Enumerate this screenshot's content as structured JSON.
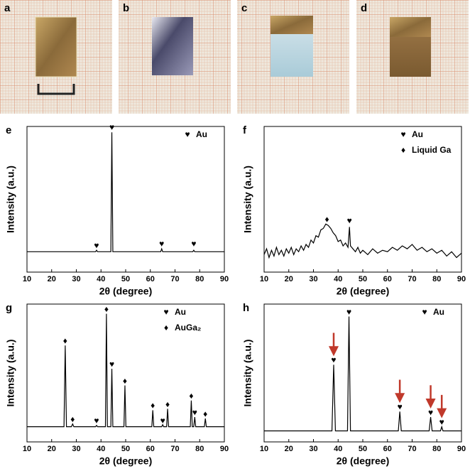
{
  "photos": [
    {
      "label": "a"
    },
    {
      "label": "b"
    },
    {
      "label": "c"
    },
    {
      "label": "d"
    }
  ],
  "chart_data": [
    {
      "type": "line",
      "label": "e",
      "xlabel": "2θ (degree)",
      "ylabel": "Intensity (a.u.)",
      "xlim": [
        10,
        90
      ],
      "ylim": [
        0,
        100
      ],
      "xticks": [
        10,
        20,
        30,
        40,
        50,
        60,
        70,
        80,
        90
      ],
      "legend_position": "upper right",
      "color": "#000000",
      "x": [
        10,
        37.8,
        38.2,
        38.6,
        44,
        44.4,
        44.8,
        64.2,
        64.6,
        65,
        77.2,
        77.6,
        78,
        90
      ],
      "values": [
        14,
        14,
        15,
        14,
        14,
        96,
        14,
        14,
        16,
        14,
        14,
        15,
        14,
        14
      ],
      "legend": [
        {
          "symbol": "♥",
          "label": "Au"
        }
      ],
      "markers": [
        {
          "symbol": "♥",
          "x": 38.2,
          "y": 18
        },
        {
          "symbol": "♥",
          "x": 44.4,
          "y": 99
        },
        {
          "symbol": "♥",
          "x": 64.6,
          "y": 19
        },
        {
          "symbol": "♥",
          "x": 77.6,
          "y": 19
        }
      ],
      "arrows": []
    },
    {
      "type": "line",
      "label": "f",
      "xlabel": "2θ (degree)",
      "ylabel": "Intensity (a.u.)",
      "xlim": [
        10,
        90
      ],
      "ylim": [
        0,
        100
      ],
      "xticks": [
        10,
        20,
        30,
        40,
        50,
        60,
        70,
        80,
        90
      ],
      "legend_position": "upper right",
      "color": "#000000",
      "x": [
        10,
        11,
        12,
        13,
        14,
        15,
        16,
        17,
        18,
        19,
        20,
        21,
        22,
        23,
        24,
        25,
        26,
        27,
        28,
        29,
        30,
        31,
        32,
        33,
        34,
        35,
        36,
        37,
        38,
        39,
        40,
        41,
        42,
        43,
        44,
        44.6,
        45,
        46,
        47,
        48,
        49,
        50,
        52,
        54,
        56,
        58,
        60,
        62,
        64,
        66,
        68,
        70,
        72,
        74,
        76,
        78,
        80,
        82,
        84,
        86,
        88,
        90
      ],
      "values": [
        12,
        16,
        10,
        15,
        11,
        17,
        12,
        15,
        11,
        16,
        13,
        17,
        12,
        16,
        14,
        18,
        15,
        19,
        17,
        22,
        20,
        25,
        24,
        29,
        30,
        33,
        32,
        30,
        27,
        25,
        21,
        22,
        18,
        20,
        17,
        31,
        18,
        16,
        14,
        17,
        13,
        15,
        12,
        16,
        13,
        15,
        14,
        17,
        15,
        18,
        16,
        19,
        15,
        17,
        14,
        16,
        13,
        15,
        11,
        14,
        10,
        13
      ],
      "legend": [
        {
          "symbol": "♥",
          "label": "Au"
        },
        {
          "symbol": "♦",
          "label": "Liquid Ga"
        }
      ],
      "markers": [
        {
          "symbol": "♦",
          "x": 35.5,
          "y": 36
        },
        {
          "symbol": "♥",
          "x": 44.6,
          "y": 35
        }
      ],
      "arrows": []
    },
    {
      "type": "line",
      "label": "g",
      "xlabel": "2θ (degree)",
      "ylabel": "Intensity (a.u.)",
      "xlim": [
        10,
        90
      ],
      "ylim": [
        0,
        100
      ],
      "xticks": [
        10,
        20,
        30,
        40,
        50,
        60,
        70,
        80,
        90
      ],
      "legend_position": "upper right",
      "color": "#000000",
      "x": [
        10,
        25,
        25.5,
        26,
        28,
        28.5,
        29,
        37.8,
        38.2,
        38.6,
        41.8,
        42.2,
        42.6,
        44,
        44.4,
        44.8,
        49.3,
        49.7,
        50.1,
        60.6,
        61,
        61.4,
        64.6,
        65,
        65.4,
        66.6,
        67,
        67.4,
        76.2,
        76.6,
        77,
        77.6,
        78,
        78.4,
        81.9,
        82.3,
        82.7,
        90
      ],
      "values": [
        11,
        11,
        70,
        11,
        11,
        13,
        11,
        11,
        12,
        11,
        11,
        93,
        11,
        11,
        53,
        11,
        11,
        41,
        11,
        11,
        23,
        11,
        11,
        12.5,
        11,
        11,
        24,
        11,
        11,
        30,
        11,
        11,
        18,
        11,
        11,
        17,
        11,
        11
      ],
      "legend": [
        {
          "symbol": "♥",
          "label": "Au"
        },
        {
          "symbol": "♦",
          "label": "AuGa₂"
        }
      ],
      "markers": [
        {
          "symbol": "♦",
          "x": 25.5,
          "y": 73
        },
        {
          "symbol": "♦",
          "x": 28.5,
          "y": 16
        },
        {
          "symbol": "♥",
          "x": 38.2,
          "y": 15
        },
        {
          "symbol": "♦",
          "x": 42.2,
          "y": 96
        },
        {
          "symbol": "♥",
          "x": 44.4,
          "y": 56
        },
        {
          "symbol": "♦",
          "x": 49.7,
          "y": 44
        },
        {
          "symbol": "♦",
          "x": 61,
          "y": 26
        },
        {
          "symbol": "♥",
          "x": 65,
          "y": 15
        },
        {
          "symbol": "♦",
          "x": 67,
          "y": 27
        },
        {
          "symbol": "♦",
          "x": 76.6,
          "y": 33
        },
        {
          "symbol": "♥",
          "x": 78,
          "y": 21
        },
        {
          "symbol": "♦",
          "x": 82.3,
          "y": 20
        }
      ],
      "arrows": []
    },
    {
      "type": "line",
      "label": "h",
      "xlabel": "2θ (degree)",
      "ylabel": "Intensity (a.u.)",
      "xlim": [
        10,
        90
      ],
      "ylim": [
        0,
        100
      ],
      "xticks": [
        10,
        20,
        30,
        40,
        50,
        60,
        70,
        80,
        90
      ],
      "legend_position": "upper right",
      "color": "#000000",
      "arrow_color": "#c0392b",
      "x": [
        10,
        37.5,
        38.2,
        38.9,
        43.8,
        44.4,
        45,
        64.4,
        65,
        65.6,
        76.9,
        77.5,
        78.1,
        81.5,
        82,
        82.5,
        90
      ],
      "values": [
        8,
        8,
        56,
        8,
        8,
        91,
        8,
        8,
        22,
        8,
        8,
        18,
        8,
        8,
        11,
        8,
        8
      ],
      "legend": [
        {
          "symbol": "♥",
          "label": "Au"
        }
      ],
      "markers": [
        {
          "symbol": "♥",
          "x": 38.2,
          "y": 59
        },
        {
          "symbol": "♥",
          "x": 44.4,
          "y": 94
        },
        {
          "symbol": "♥",
          "x": 65,
          "y": 25
        },
        {
          "symbol": "♥",
          "x": 77.5,
          "y": 21
        },
        {
          "symbol": "♥",
          "x": 82,
          "y": 14
        }
      ],
      "arrows": [
        38.2,
        65,
        77.5,
        82
      ]
    }
  ]
}
